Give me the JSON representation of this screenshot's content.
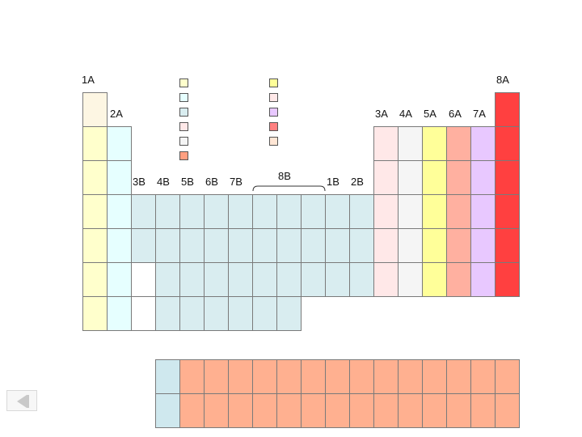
{
  "colors": {
    "alkali": "#fdf6e3",
    "yellow": "#ffffcc",
    "cyan": "#e6ffff",
    "teal": "#d9edf0",
    "white": "#ffffff",
    "pink": "#ffe8e8",
    "gray": "#f5f5f5",
    "lemon": "#ffff99",
    "salmon": "#ffb0a0",
    "lavender": "#e8c8ff",
    "red": "#ff4040",
    "lan": "#cfe8ee",
    "orange": "#ffb090",
    "legend_orange": "#ff9f80",
    "legend_red": "#ff8080",
    "legend_peach": "#ffe6d5"
  },
  "group_labels": [
    "1A",
    "2A",
    "3B",
    "4B",
    "5B",
    "6B",
    "7B",
    "8B",
    "1B",
    "2B",
    "3A",
    "4A",
    "5A",
    "6A",
    "7A",
    "8A"
  ],
  "legend_left": [
    "yellow",
    "cyan",
    "teal",
    "pink",
    "gray",
    "legend_orange"
  ],
  "legend_right": [
    "lemon",
    "pink",
    "lavender",
    "legend_red",
    "legend_peach"
  ],
  "main_rows": [
    [
      "alkali",
      null,
      null,
      null,
      null,
      null,
      null,
      null,
      null,
      null,
      null,
      null,
      null,
      null,
      null,
      null,
      null,
      "red"
    ],
    [
      "yellow",
      "cyan",
      null,
      null,
      null,
      null,
      null,
      null,
      null,
      null,
      null,
      null,
      "pink",
      "gray",
      "lemon",
      "salmon",
      "lavender",
      "red"
    ],
    [
      "yellow",
      "cyan",
      null,
      null,
      null,
      null,
      null,
      null,
      null,
      null,
      null,
      null,
      "pink",
      "gray",
      "lemon",
      "salmon",
      "lavender",
      "red"
    ],
    [
      "yellow",
      "cyan",
      "teal",
      "teal",
      "teal",
      "teal",
      "teal",
      "teal",
      "teal",
      "teal",
      "teal",
      "teal",
      "pink",
      "gray",
      "lemon",
      "salmon",
      "lavender",
      "red"
    ],
    [
      "yellow",
      "cyan",
      "teal",
      "teal",
      "teal",
      "teal",
      "teal",
      "teal",
      "teal",
      "teal",
      "teal",
      "teal",
      "pink",
      "gray",
      "lemon",
      "salmon",
      "lavender",
      "red"
    ],
    [
      "yellow",
      "cyan",
      "white",
      "teal",
      "teal",
      "teal",
      "teal",
      "teal",
      "teal",
      "teal",
      "teal",
      "teal",
      "pink",
      "gray",
      "lemon",
      "salmon",
      "lavender",
      "red"
    ],
    [
      "yellow",
      "cyan",
      "white",
      "teal",
      "teal",
      "teal",
      "teal",
      "teal",
      "teal",
      null,
      null,
      null,
      null,
      null,
      null,
      null,
      null,
      null
    ]
  ],
  "f_rows": [
    [
      "lan",
      "orange",
      "orange",
      "orange",
      "orange",
      "orange",
      "orange",
      "orange",
      "orange",
      "orange",
      "orange",
      "orange",
      "orange",
      "orange",
      "orange"
    ],
    [
      "lan",
      "orange",
      "orange",
      "orange",
      "orange",
      "orange",
      "orange",
      "orange",
      "orange",
      "orange",
      "orange",
      "orange",
      "orange",
      "orange",
      "orange"
    ]
  ],
  "nav": {
    "icon": "previous-slide-icon"
  }
}
